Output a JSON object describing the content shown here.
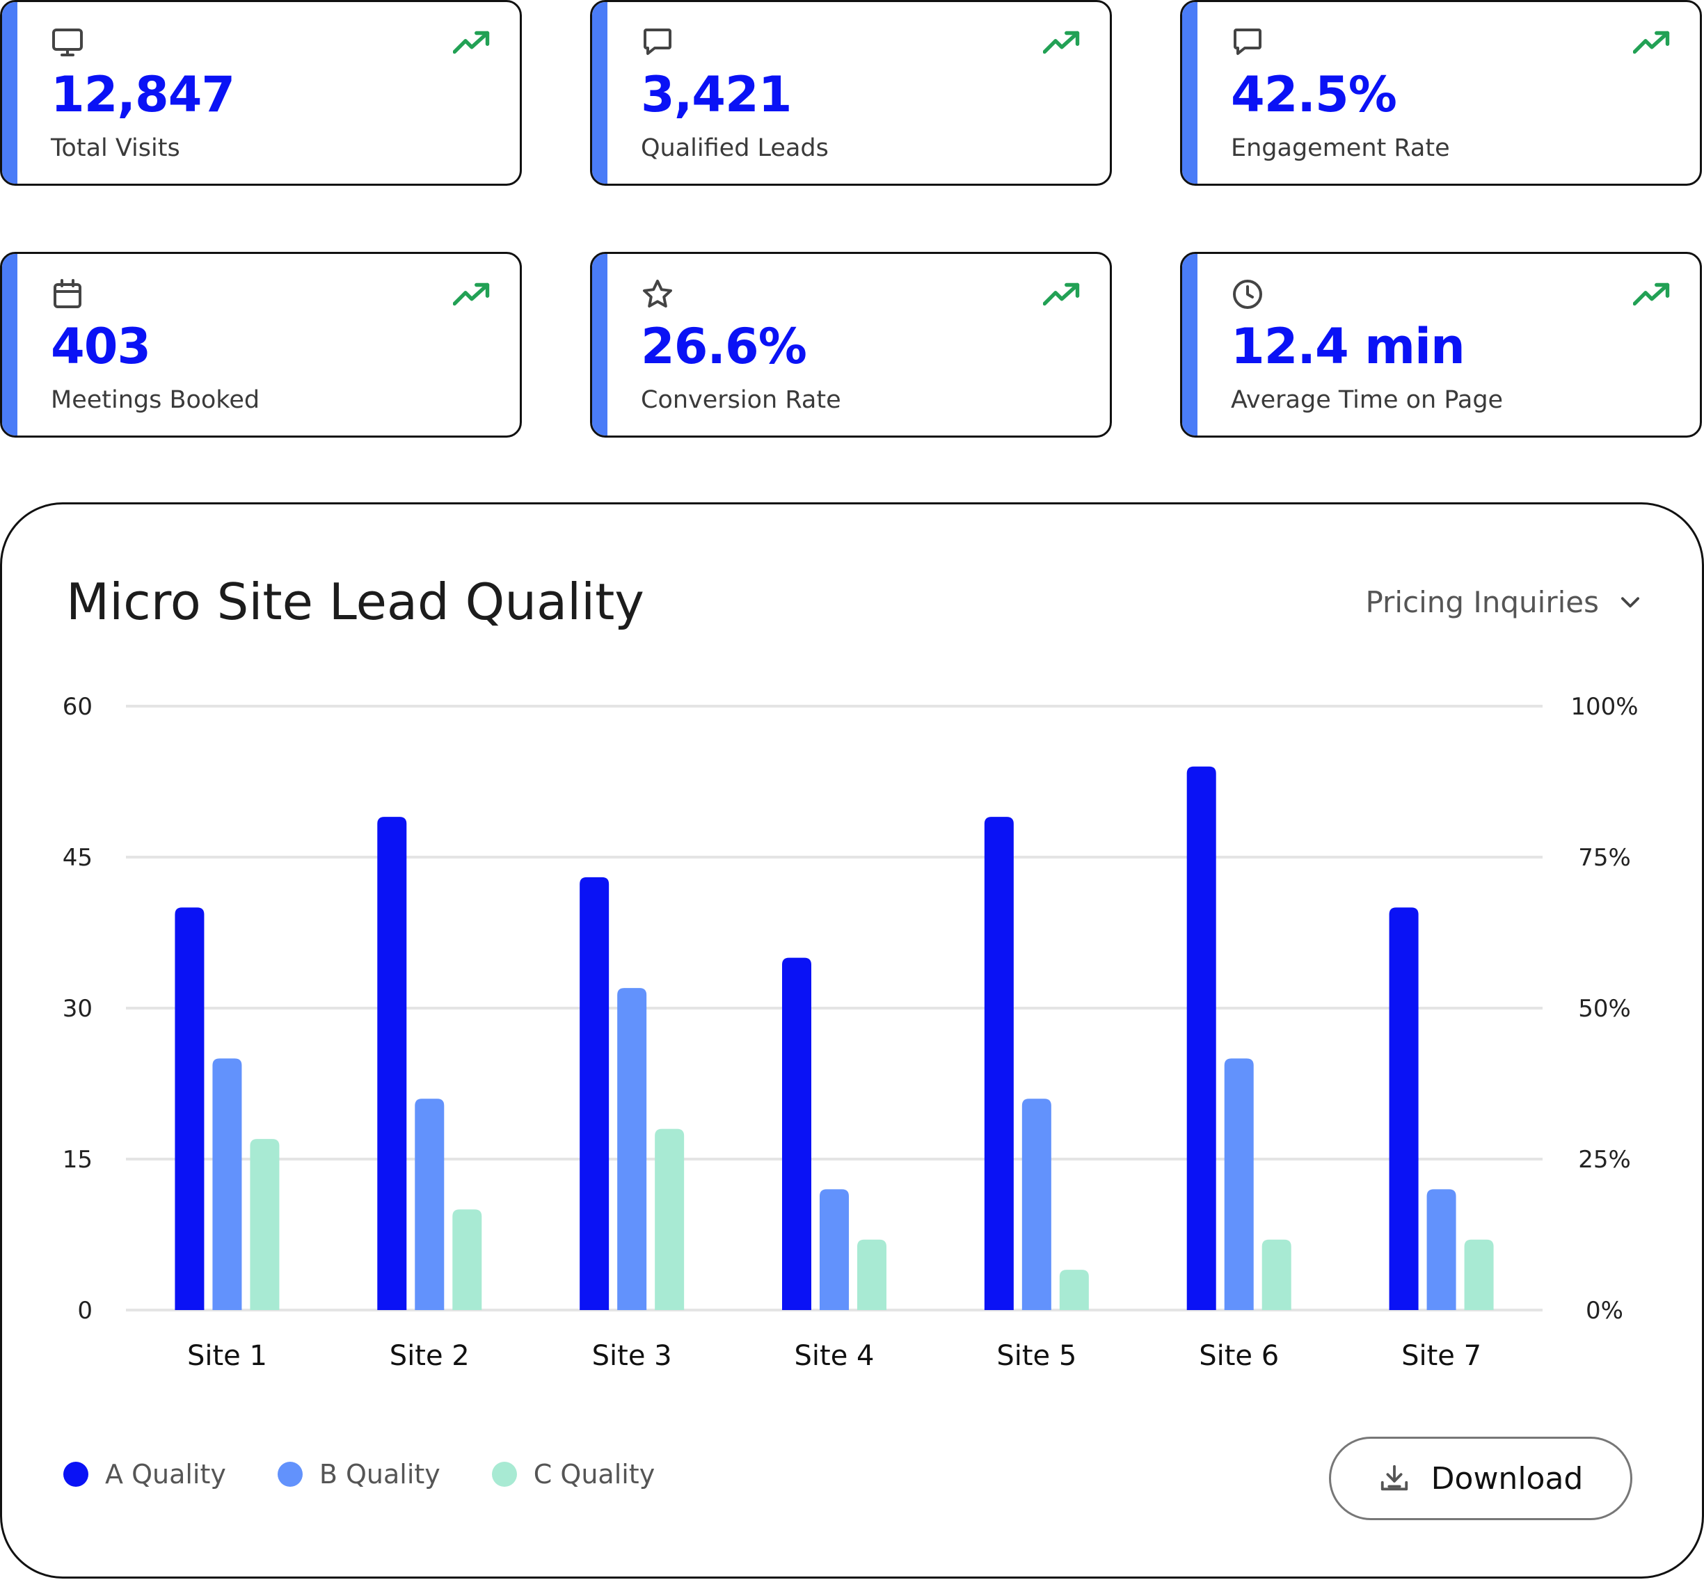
{
  "kpis": [
    {
      "icon": "monitor-icon",
      "value": "12,847",
      "label": "Total Visits"
    },
    {
      "icon": "chat-bubble-icon",
      "value": "3,421",
      "label": "Qualified Leads"
    },
    {
      "icon": "chat-bubble-icon",
      "value": "42.5%",
      "label": "Engagement Rate"
    },
    {
      "icon": "calendar-icon",
      "value": "403",
      "label": "Meetings Booked"
    },
    {
      "icon": "star-icon",
      "value": "26.6%",
      "label": "Conversion Rate"
    },
    {
      "icon": "clock-icon",
      "value": "12.4 min",
      "label": "Average Time on Page"
    }
  ],
  "colors": {
    "accent": "#4a7cf7",
    "kpi_value": "#0a12f5",
    "trend_up": "#22a155",
    "a_quality": "#0a12f5",
    "b_quality": "#6292fc",
    "c_quality": "#a8ead3",
    "grid": "#e4e4e4"
  },
  "chart": {
    "title": "Micro Site Lead Quality",
    "filter_label": "Pricing Inquiries",
    "download_label": "Download"
  },
  "chart_data": {
    "type": "bar",
    "title": "Micro Site Lead Quality",
    "categories": [
      "Site 1",
      "Site 2",
      "Site 3",
      "Site 4",
      "Site 5",
      "Site 6",
      "Site 7"
    ],
    "series": [
      {
        "name": "A Quality",
        "values": [
          40,
          49,
          43,
          35,
          49,
          54,
          40
        ]
      },
      {
        "name": "B Quality",
        "values": [
          25,
          21,
          32,
          12,
          21,
          25,
          12
        ]
      },
      {
        "name": "C Quality",
        "values": [
          17,
          10,
          18,
          7,
          4,
          7,
          7
        ]
      }
    ],
    "ylim": [
      0,
      60
    ],
    "yticks": [
      "0",
      "15",
      "30",
      "45",
      "60"
    ],
    "y2ticks": [
      "0%",
      "25%",
      "50%",
      "75%",
      "100%"
    ],
    "grid": true,
    "legend": "bottom-left"
  }
}
